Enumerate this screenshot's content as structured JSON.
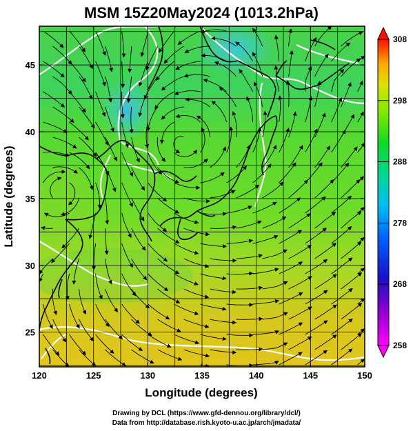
{
  "title": "MSM 15Z20May2024 (1013.2hPa)",
  "x_axis": {
    "label": "Longitude (degrees)",
    "ticks": [
      "120",
      "125",
      "130",
      "135",
      "140",
      "145",
      "150"
    ]
  },
  "y_axis": {
    "label": "Latitude  (degrees)",
    "ticks": [
      "25",
      "30",
      "35",
      "40",
      "45"
    ]
  },
  "colorbar": {
    "ticks": [
      "308",
      "298",
      "288",
      "278",
      "268",
      "258"
    ],
    "colors": [
      "#ff00ff",
      "#cc00cc",
      "#2200cc",
      "#0055ff",
      "#00c0ff",
      "#00e0c0",
      "#00dd33",
      "#66ee00",
      "#ccee00",
      "#ffcc00",
      "#ff7700",
      "#ff0000"
    ]
  },
  "credits": {
    "line1": "Drawing by DCL (https://www.gfd-dennou.org/library/dcl/)",
    "line2": "Data from http://database.rish.kyoto-u.ac.jp/arch/jmadata/"
  },
  "map": {
    "lon_range": [
      120,
      150
    ],
    "lat_range": [
      22.4,
      47.9
    ],
    "grid_spacing_deg": 2.5,
    "field_colors": {
      "warm": "#e0c81e",
      "mid": "#4cd830",
      "cool": "#2ad084",
      "cold": "#30c0e0"
    },
    "coast_color": "#000000",
    "contour_color": "#ffffff",
    "streamline_color": "#000000"
  }
}
